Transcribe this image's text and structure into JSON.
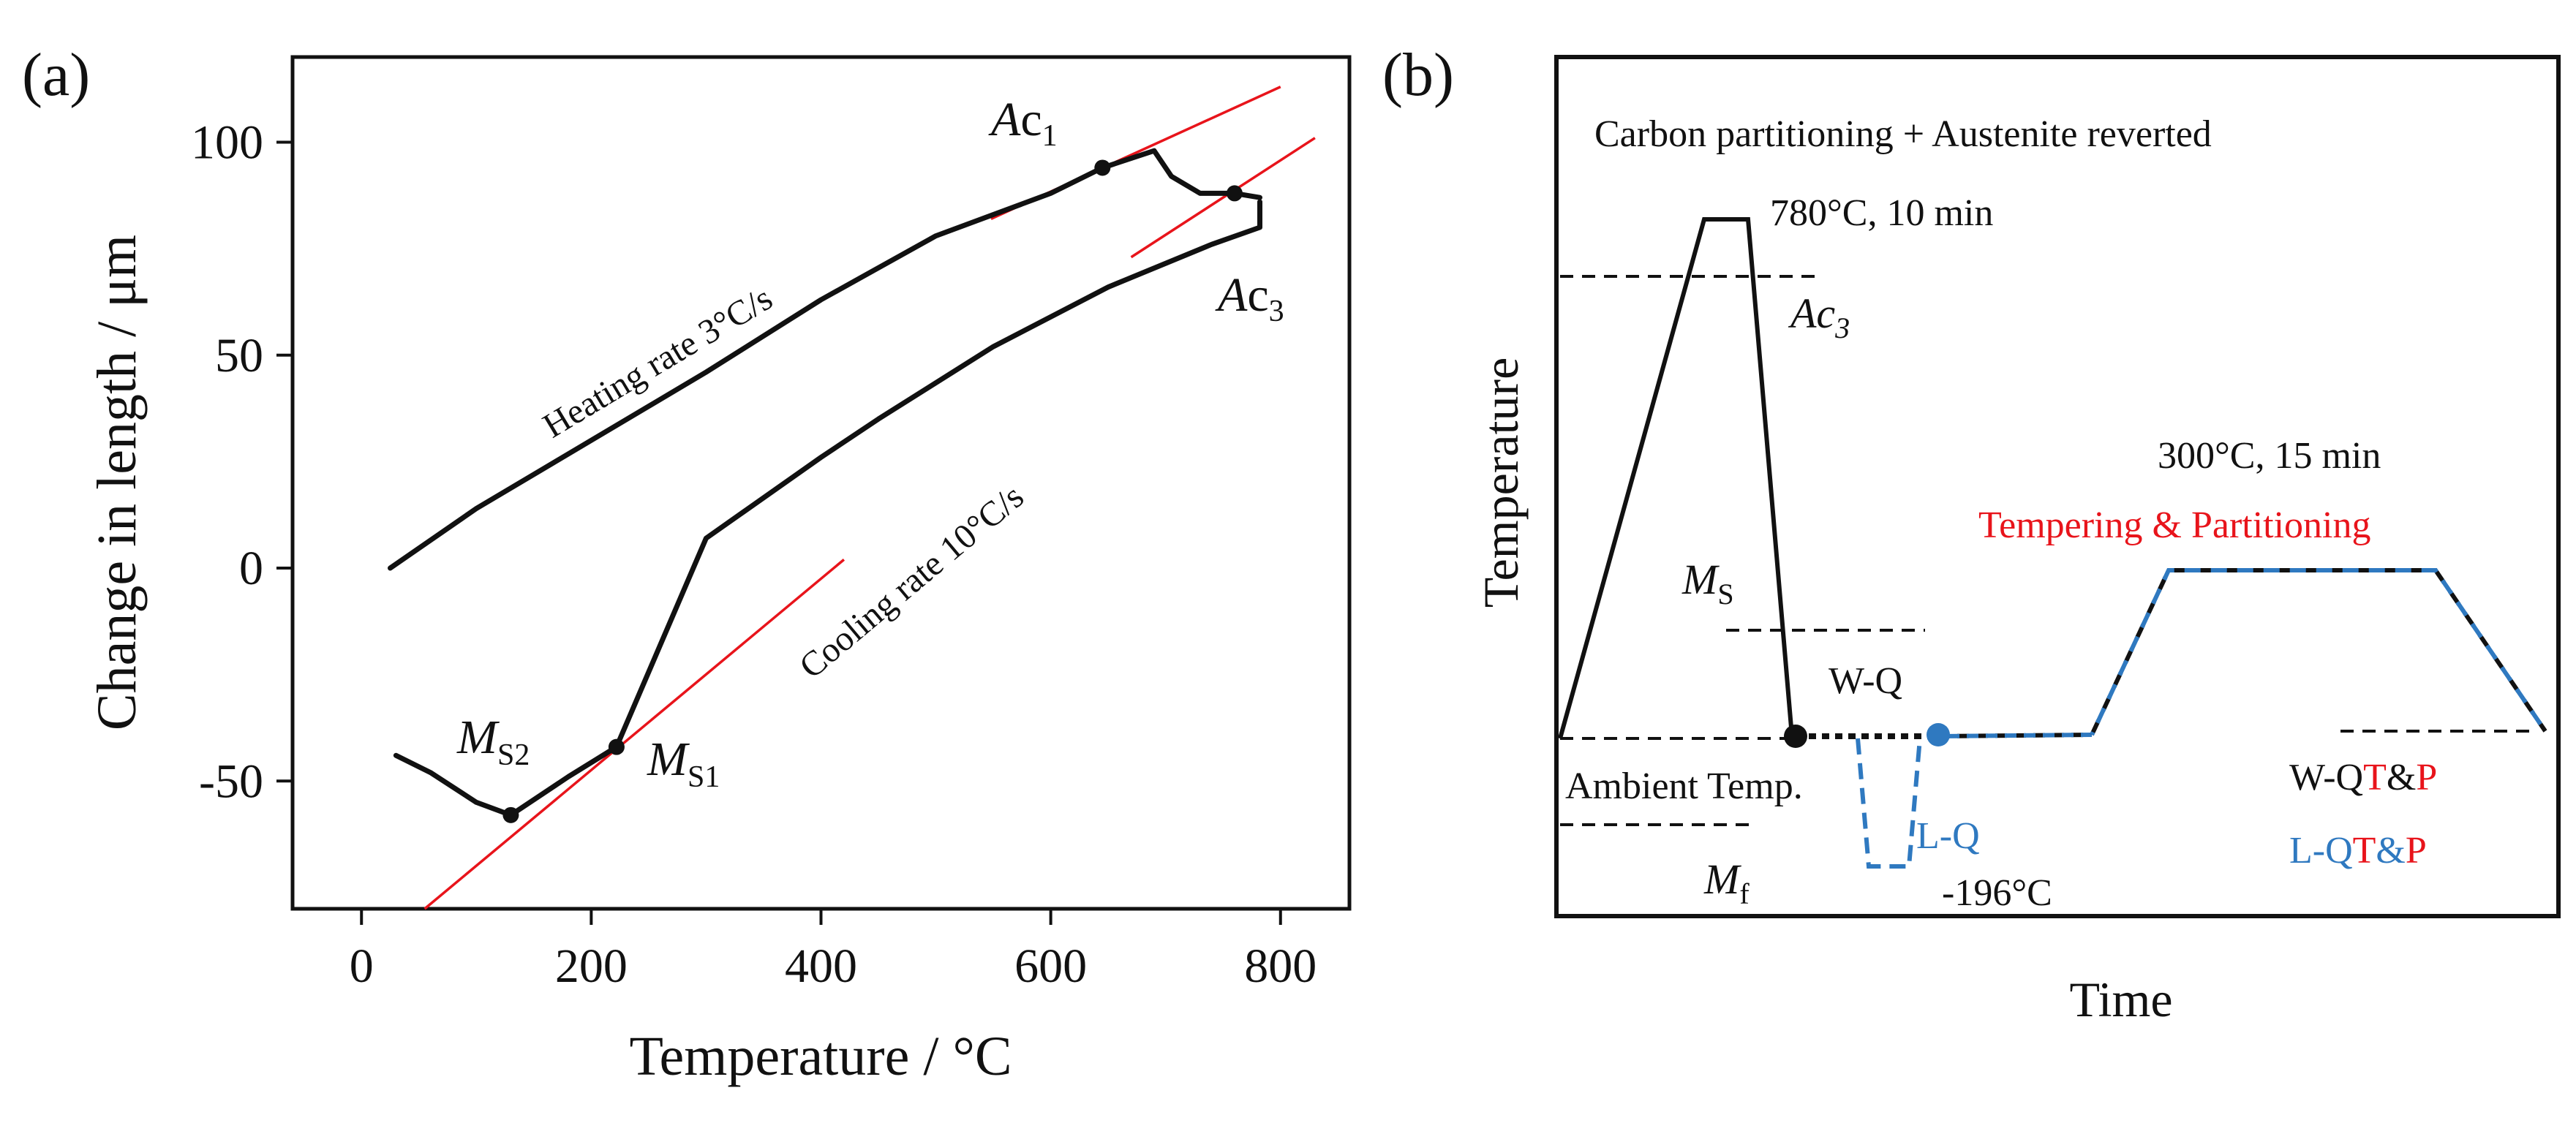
{
  "colors": {
    "ink": "#111111",
    "red": "#e8141b",
    "blue": "#2f79c0"
  },
  "chart_data": [
    {
      "type": "line",
      "panel_label": "(a)",
      "xlabel": "Temperature / ",
      "xlabel_unit": "°C",
      "ylabel": "Change in length / μm",
      "xlim": [
        -60,
        860
      ],
      "ylim": [
        -80,
        120
      ],
      "xticks": [
        0,
        200,
        400,
        600,
        800
      ],
      "yticks": [
        -50,
        0,
        50,
        100
      ],
      "xtick_labels": [
        "0",
        "200",
        "400",
        "600",
        "800"
      ],
      "ytick_labels": [
        "-50",
        "0",
        "50",
        "100"
      ],
      "series": [
        {
          "name": "heating",
          "label": "Heating rate 3°C/s",
          "x": [
            25,
            100,
            200,
            300,
            400,
            500,
            550,
            600,
            645,
            690,
            705,
            730,
            760,
            782
          ],
          "y": [
            0,
            14,
            30,
            46,
            63,
            78,
            83,
            88,
            94,
            98,
            92,
            88,
            88,
            87
          ]
        },
        {
          "name": "cooling",
          "label": "Cooling rate 10°C/s",
          "x": [
            782,
            782,
            740,
            650,
            550,
            450,
            400,
            300,
            222,
            180,
            130,
            100,
            60,
            30
          ],
          "y": [
            86,
            80,
            76,
            66,
            52,
            35,
            26,
            7,
            -42,
            -49,
            -58,
            -55,
            -48,
            -44
          ]
        }
      ],
      "tangent_lines": [
        {
          "x": [
            548,
            800
          ],
          "y": [
            82,
            113
          ]
        },
        {
          "x": [
            670,
            830
          ],
          "y": [
            73,
            101
          ]
        },
        {
          "x": [
            55,
            420
          ],
          "y": [
            -80,
            2
          ]
        }
      ],
      "points": [
        {
          "name": "Ac1",
          "x": 645,
          "y": 94
        },
        {
          "name": "Ac3",
          "x": 760,
          "y": 88
        },
        {
          "name": "Ms1",
          "x": 222,
          "y": -42
        },
        {
          "name": "Ms2",
          "x": 130,
          "y": -58
        }
      ],
      "annotations": {
        "ac1": {
          "main": "A",
          "mid": "c",
          "sub": "1"
        },
        "ac3": {
          "main": "A",
          "mid": "c",
          "sub": "3"
        },
        "ms1": {
          "main": "M",
          "sub": "S1"
        },
        "ms2": {
          "main": "M",
          "sub": "S2"
        }
      }
    },
    {
      "type": "diagram",
      "panel_label": "(b)",
      "title": "Carbon partitioning + Austenite reverted",
      "xlabel": "Time",
      "ylabel": "Temperature",
      "labels": {
        "aust_cond": "780°C, 10 min",
        "ac3": {
          "main": "Ac",
          "sub": "3"
        },
        "ms": {
          "main": "M",
          "sub": "S"
        },
        "mf": {
          "main": "M",
          "sub": "f"
        },
        "wq": "W-Q",
        "lq": "L-Q",
        "lq_temp": "-196°C",
        "ambient": "Ambient  Temp.",
        "temper_cond": "300°C, 15 min",
        "temper_title": "Tempering & Partitioning",
        "wqtp_a": "W-Q",
        "wqtp_t": "T",
        "wqtp_amp": "&",
        "wqtp_p": "P",
        "lqtp_a": "L-Q",
        "lqtp_t": "T",
        "lqtp_amp": "&",
        "lqtp_p": "P"
      }
    }
  ]
}
